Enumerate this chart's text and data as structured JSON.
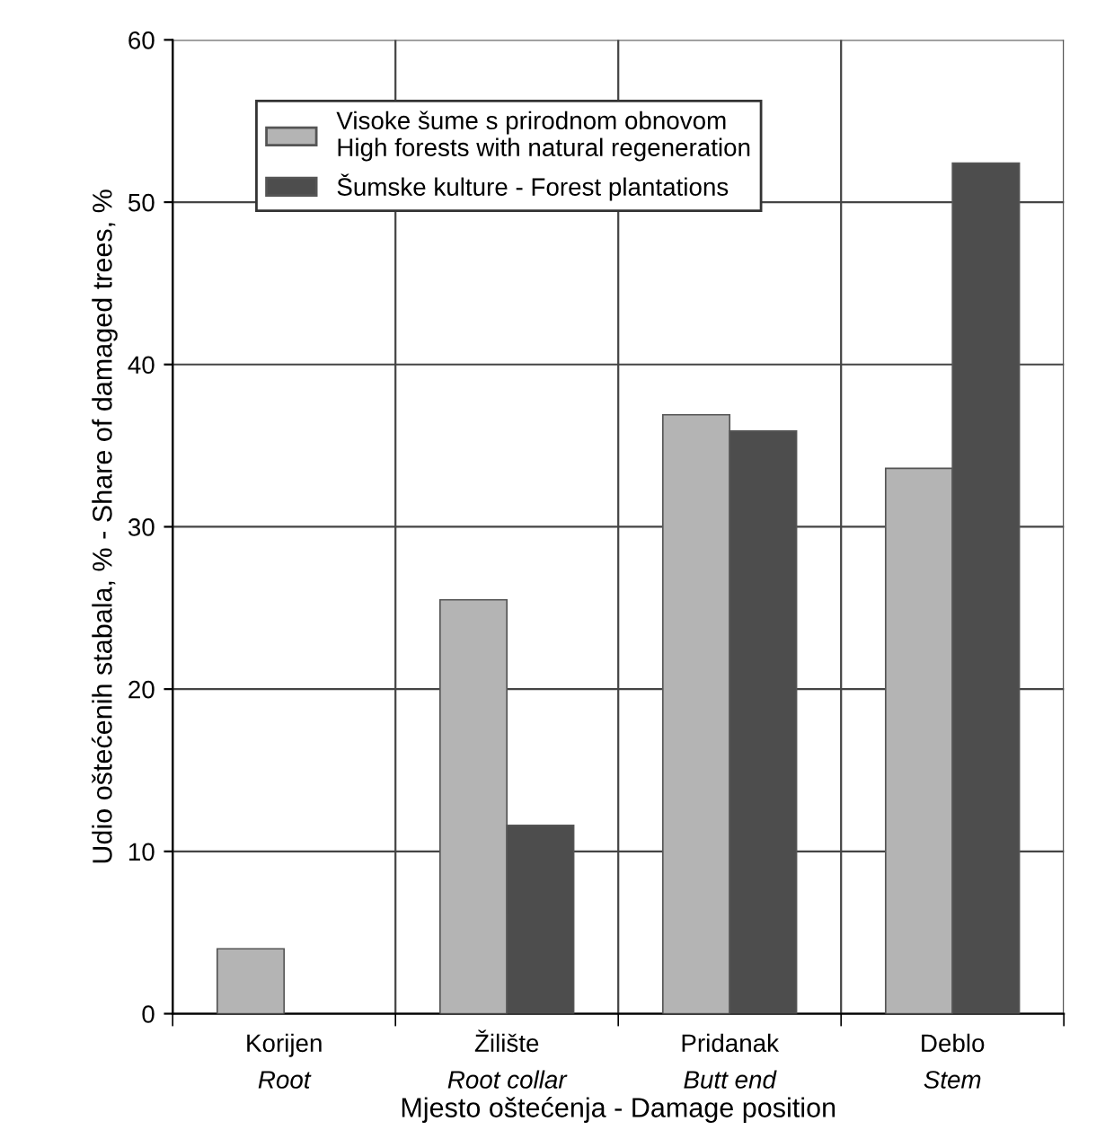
{
  "chart_data": {
    "type": "bar",
    "categories": [
      "Korijen\nRoot",
      "Žilište\nRoot collar",
      "Pridanak\nButt end",
      "Deblo\nStem"
    ],
    "series": [
      {
        "name": "Visoke šume s prirodnom obnovom\nHigh forests with natural regeneration",
        "color": "#b4b4b4",
        "values": [
          4.0,
          25.5,
          36.9,
          33.6
        ]
      },
      {
        "name": "Šumske kulture - Forest plantations",
        "color": "#4d4d4d",
        "values": [
          null,
          11.6,
          35.9,
          52.4
        ]
      }
    ],
    "xlabel": "Mjesto oštećenja - Damage position",
    "ylabel": "Udio oštećenih stabala, % - Share of damaged trees, %",
    "ylim": [
      0,
      60
    ],
    "yticks": [
      0,
      10,
      20,
      30,
      40,
      50,
      60
    ],
    "grid": true,
    "legend": "top left"
  }
}
